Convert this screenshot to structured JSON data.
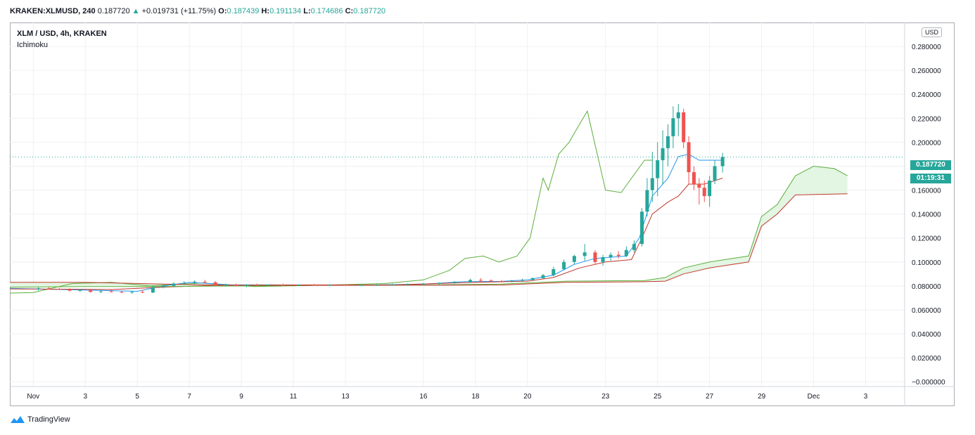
{
  "header": {
    "symbol": "KRAKEN:XLMUSD, 240",
    "last": "0.187720",
    "change_arrow": "▲",
    "change": "+0.019731 (+11.75%)",
    "o_label": "O:",
    "o_value": "0.187439",
    "h_label": "H:",
    "h_value": "0.191134",
    "l_label": "L:",
    "l_value": "0.174686",
    "c_label": "C:",
    "c_value": "0.187720"
  },
  "legend": {
    "title": "XLM / USD, 4h, KRAKEN",
    "indicator": "Ichimoku"
  },
  "price_scale": {
    "currency": "USD",
    "last_price": "0.187720",
    "countdown": "01:19:31"
  },
  "footer": {
    "brand": "TradingView"
  },
  "colors": {
    "up": "#26a69a",
    "down": "#ef5350",
    "lagging_span": "#5cae3a",
    "conversion_line": "#2196f3",
    "base_line": "#c0392b",
    "cloud_fill": "#e3f5e3",
    "grid": "#eef0f3",
    "text": "#131722"
  },
  "chart_data": {
    "type": "candlestick",
    "title": "XLM / USD, 4h, KRAKEN",
    "indicator": "Ichimoku",
    "ylim": [
      -0.004,
      0.3
    ],
    "y_ticks": [
      "0.280000",
      "0.260000",
      "0.240000",
      "0.220000",
      "0.200000",
      "0.180000",
      "0.160000",
      "0.140000",
      "0.120000",
      "0.100000",
      "0.080000",
      "0.060000",
      "0.040000",
      "0.020000",
      "−0.000000"
    ],
    "y_tick_values": [
      0.28,
      0.26,
      0.24,
      0.22,
      0.2,
      0.18,
      0.16,
      0.14,
      0.12,
      0.1,
      0.08,
      0.06,
      0.04,
      0.02,
      0.0
    ],
    "x_ticks": [
      "Nov",
      "3",
      "5",
      "7",
      "9",
      "11",
      "13",
      "16",
      "18",
      "20",
      "23",
      "25",
      "27",
      "29",
      "Dec",
      "3"
    ],
    "x_tick_days": [
      1,
      3,
      5,
      7,
      9,
      11,
      13,
      16,
      18,
      20,
      23,
      25,
      27,
      29,
      31,
      33
    ],
    "x_range_days": [
      0.1,
      34.5
    ],
    "last_price": 0.18772,
    "ohlc_4h": [
      [
        1.2,
        0.077,
        0.079,
        0.076,
        0.078
      ],
      [
        1.6,
        0.078,
        0.079,
        0.077,
        0.0775
      ],
      [
        2.0,
        0.0775,
        0.0785,
        0.0765,
        0.077
      ],
      [
        2.4,
        0.077,
        0.078,
        0.0755,
        0.076
      ],
      [
        2.8,
        0.076,
        0.0775,
        0.075,
        0.0765
      ],
      [
        3.2,
        0.0765,
        0.0775,
        0.0745,
        0.075
      ],
      [
        3.6,
        0.075,
        0.0765,
        0.074,
        0.0755
      ],
      [
        4.0,
        0.0755,
        0.077,
        0.0745,
        0.075
      ],
      [
        4.4,
        0.075,
        0.076,
        0.074,
        0.0745
      ],
      [
        4.8,
        0.0745,
        0.076,
        0.0735,
        0.075
      ],
      [
        5.2,
        0.075,
        0.0765,
        0.074,
        0.0745
      ],
      [
        5.6,
        0.0745,
        0.08,
        0.074,
        0.079
      ],
      [
        6.0,
        0.079,
        0.081,
        0.078,
        0.08
      ],
      [
        6.4,
        0.08,
        0.083,
        0.079,
        0.082
      ],
      [
        6.8,
        0.082,
        0.084,
        0.081,
        0.0825
      ],
      [
        7.2,
        0.0825,
        0.0845,
        0.0815,
        0.0835
      ],
      [
        7.6,
        0.0835,
        0.085,
        0.082,
        0.083
      ],
      [
        8.0,
        0.083,
        0.084,
        0.08,
        0.0805
      ],
      [
        8.4,
        0.0805,
        0.082,
        0.0795,
        0.081
      ],
      [
        8.8,
        0.081,
        0.082,
        0.0795,
        0.08
      ],
      [
        9.2,
        0.08,
        0.0815,
        0.079,
        0.081
      ],
      [
        9.6,
        0.081,
        0.082,
        0.08,
        0.0805
      ],
      [
        10.0,
        0.0805,
        0.0815,
        0.0795,
        0.081
      ],
      [
        10.6,
        0.081,
        0.082,
        0.08,
        0.0808
      ],
      [
        11.2,
        0.0808,
        0.0815,
        0.08,
        0.081
      ],
      [
        11.8,
        0.081,
        0.0818,
        0.0802,
        0.0806
      ],
      [
        12.4,
        0.0806,
        0.0815,
        0.0798,
        0.0808
      ],
      [
        13.0,
        0.0808,
        0.0815,
        0.08,
        0.0805
      ],
      [
        13.6,
        0.0805,
        0.0812,
        0.0798,
        0.0808
      ],
      [
        14.2,
        0.0808,
        0.0816,
        0.08,
        0.081
      ],
      [
        14.8,
        0.081,
        0.082,
        0.0802,
        0.0812
      ],
      [
        15.4,
        0.0812,
        0.0822,
        0.0805,
        0.0815
      ],
      [
        16.0,
        0.0815,
        0.0825,
        0.0805,
        0.0818
      ],
      [
        16.6,
        0.0818,
        0.083,
        0.081,
        0.0825
      ],
      [
        17.2,
        0.0825,
        0.084,
        0.0818,
        0.0835
      ],
      [
        17.8,
        0.0835,
        0.086,
        0.0825,
        0.085
      ],
      [
        18.2,
        0.085,
        0.0865,
        0.0835,
        0.0845
      ],
      [
        18.6,
        0.0845,
        0.0855,
        0.083,
        0.084
      ],
      [
        19.0,
        0.084,
        0.085,
        0.083,
        0.0838
      ],
      [
        19.4,
        0.0838,
        0.085,
        0.083,
        0.0845
      ],
      [
        19.8,
        0.0845,
        0.086,
        0.0835,
        0.085
      ],
      [
        20.2,
        0.085,
        0.087,
        0.0845,
        0.0865
      ],
      [
        20.6,
        0.0865,
        0.09,
        0.086,
        0.089
      ],
      [
        21.0,
        0.089,
        0.096,
        0.088,
        0.094
      ],
      [
        21.4,
        0.094,
        0.102,
        0.093,
        0.1
      ],
      [
        21.8,
        0.1,
        0.106,
        0.098,
        0.105
      ],
      [
        22.2,
        0.105,
        0.115,
        0.101,
        0.108
      ],
      [
        22.6,
        0.108,
        0.11,
        0.098,
        0.1
      ],
      [
        22.9,
        0.1,
        0.106,
        0.097,
        0.104
      ],
      [
        23.2,
        0.104,
        0.108,
        0.101,
        0.106
      ],
      [
        23.5,
        0.106,
        0.109,
        0.103,
        0.105
      ],
      [
        23.8,
        0.105,
        0.113,
        0.104,
        0.11
      ],
      [
        24.1,
        0.11,
        0.118,
        0.108,
        0.115
      ],
      [
        24.4,
        0.115,
        0.145,
        0.113,
        0.142
      ],
      [
        24.6,
        0.142,
        0.17,
        0.138,
        0.16
      ],
      [
        24.8,
        0.16,
        0.192,
        0.15,
        0.17
      ],
      [
        25.0,
        0.17,
        0.2,
        0.155,
        0.185
      ],
      [
        25.2,
        0.185,
        0.21,
        0.165,
        0.195
      ],
      [
        25.4,
        0.195,
        0.215,
        0.18,
        0.205
      ],
      [
        25.6,
        0.205,
        0.23,
        0.195,
        0.22
      ],
      [
        25.8,
        0.22,
        0.232,
        0.205,
        0.225
      ],
      [
        26.0,
        0.225,
        0.228,
        0.195,
        0.2
      ],
      [
        26.2,
        0.2,
        0.205,
        0.165,
        0.175
      ],
      [
        26.4,
        0.175,
        0.18,
        0.16,
        0.165
      ],
      [
        26.6,
        0.165,
        0.17,
        0.148,
        0.162
      ],
      [
        26.8,
        0.162,
        0.168,
        0.15,
        0.155
      ],
      [
        27.0,
        0.155,
        0.172,
        0.146,
        0.168
      ],
      [
        27.2,
        0.168,
        0.185,
        0.165,
        0.18
      ],
      [
        27.5,
        0.18,
        0.1911,
        0.1747,
        0.1877
      ]
    ],
    "series": [
      {
        "name": "Lagging Span",
        "points": [
          [
            0.1,
            0.074
          ],
          [
            1.0,
            0.0745
          ],
          [
            2.5,
            0.082
          ],
          [
            4.0,
            0.083
          ],
          [
            5.5,
            0.08
          ],
          [
            7.5,
            0.0825
          ],
          [
            9.5,
            0.0795
          ],
          [
            12.0,
            0.0805
          ],
          [
            14.5,
            0.082
          ],
          [
            16.0,
            0.085
          ],
          [
            17.0,
            0.093
          ],
          [
            17.6,
            0.103
          ],
          [
            18.3,
            0.105
          ],
          [
            18.9,
            0.1
          ],
          [
            19.6,
            0.105
          ],
          [
            20.1,
            0.12
          ],
          [
            20.6,
            0.17
          ],
          [
            20.8,
            0.16
          ],
          [
            21.2,
            0.19
          ],
          [
            21.6,
            0.2
          ],
          [
            22.0,
            0.215
          ],
          [
            22.3,
            0.226
          ],
          [
            23.0,
            0.16
          ],
          [
            23.6,
            0.158
          ],
          [
            24.5,
            0.185
          ],
          [
            24.8,
            0.185
          ]
        ]
      },
      {
        "name": "Conversion Line",
        "points": [
          [
            0.1,
            0.078
          ],
          [
            3.0,
            0.0765
          ],
          [
            5.0,
            0.0755
          ],
          [
            6.0,
            0.08
          ],
          [
            7.0,
            0.083
          ],
          [
            8.5,
            0.081
          ],
          [
            11.0,
            0.0808
          ],
          [
            14.0,
            0.0808
          ],
          [
            16.0,
            0.0815
          ],
          [
            17.5,
            0.0835
          ],
          [
            19.0,
            0.0838
          ],
          [
            20.0,
            0.085
          ],
          [
            21.0,
            0.089
          ],
          [
            21.8,
            0.098
          ],
          [
            22.6,
            0.103
          ],
          [
            23.8,
            0.105
          ],
          [
            24.3,
            0.12
          ],
          [
            24.8,
            0.155
          ],
          [
            25.4,
            0.17
          ],
          [
            25.8,
            0.188
          ],
          [
            26.2,
            0.19
          ],
          [
            26.6,
            0.185
          ],
          [
            27.0,
            0.185
          ],
          [
            27.5,
            0.185
          ]
        ]
      },
      {
        "name": "Base Line",
        "points": [
          [
            0.1,
            0.0775
          ],
          [
            4.0,
            0.077
          ],
          [
            6.0,
            0.079
          ],
          [
            8.0,
            0.0805
          ],
          [
            11.0,
            0.0808
          ],
          [
            15.0,
            0.081
          ],
          [
            18.0,
            0.083
          ],
          [
            20.0,
            0.084
          ],
          [
            21.0,
            0.087
          ],
          [
            22.0,
            0.095
          ],
          [
            23.0,
            0.1
          ],
          [
            24.0,
            0.102
          ],
          [
            24.4,
            0.12
          ],
          [
            24.8,
            0.14
          ],
          [
            25.4,
            0.15
          ],
          [
            25.8,
            0.155
          ],
          [
            26.2,
            0.165
          ],
          [
            26.8,
            0.165
          ],
          [
            27.5,
            0.17
          ]
        ]
      },
      {
        "name": "Leading Span A",
        "points": [
          [
            0.1,
            0.079
          ],
          [
            3.0,
            0.0795
          ],
          [
            6.0,
            0.0795
          ],
          [
            9.0,
            0.08
          ],
          [
            12.0,
            0.0805
          ],
          [
            16.0,
            0.0808
          ],
          [
            19.0,
            0.0815
          ],
          [
            21.5,
            0.084
          ],
          [
            24.5,
            0.0845
          ],
          [
            25.3,
            0.087
          ],
          [
            26.0,
            0.095
          ],
          [
            27.0,
            0.1
          ],
          [
            28.5,
            0.105
          ],
          [
            29.0,
            0.138
          ],
          [
            29.6,
            0.148
          ],
          [
            30.3,
            0.172
          ],
          [
            31.0,
            0.18
          ],
          [
            31.8,
            0.178
          ],
          [
            32.3,
            0.172
          ]
        ]
      },
      {
        "name": "Leading Span B",
        "points": [
          [
            0.1,
            0.083
          ],
          [
            3.0,
            0.083
          ],
          [
            6.0,
            0.0815
          ],
          [
            9.0,
            0.0805
          ],
          [
            12.0,
            0.0805
          ],
          [
            16.0,
            0.0806
          ],
          [
            19.0,
            0.0808
          ],
          [
            21.5,
            0.083
          ],
          [
            24.5,
            0.0835
          ],
          [
            25.3,
            0.084
          ],
          [
            26.0,
            0.09
          ],
          [
            27.0,
            0.095
          ],
          [
            28.5,
            0.1
          ],
          [
            29.0,
            0.13
          ],
          [
            29.6,
            0.14
          ],
          [
            30.3,
            0.156
          ],
          [
            32.3,
            0.157
          ]
        ]
      }
    ]
  }
}
